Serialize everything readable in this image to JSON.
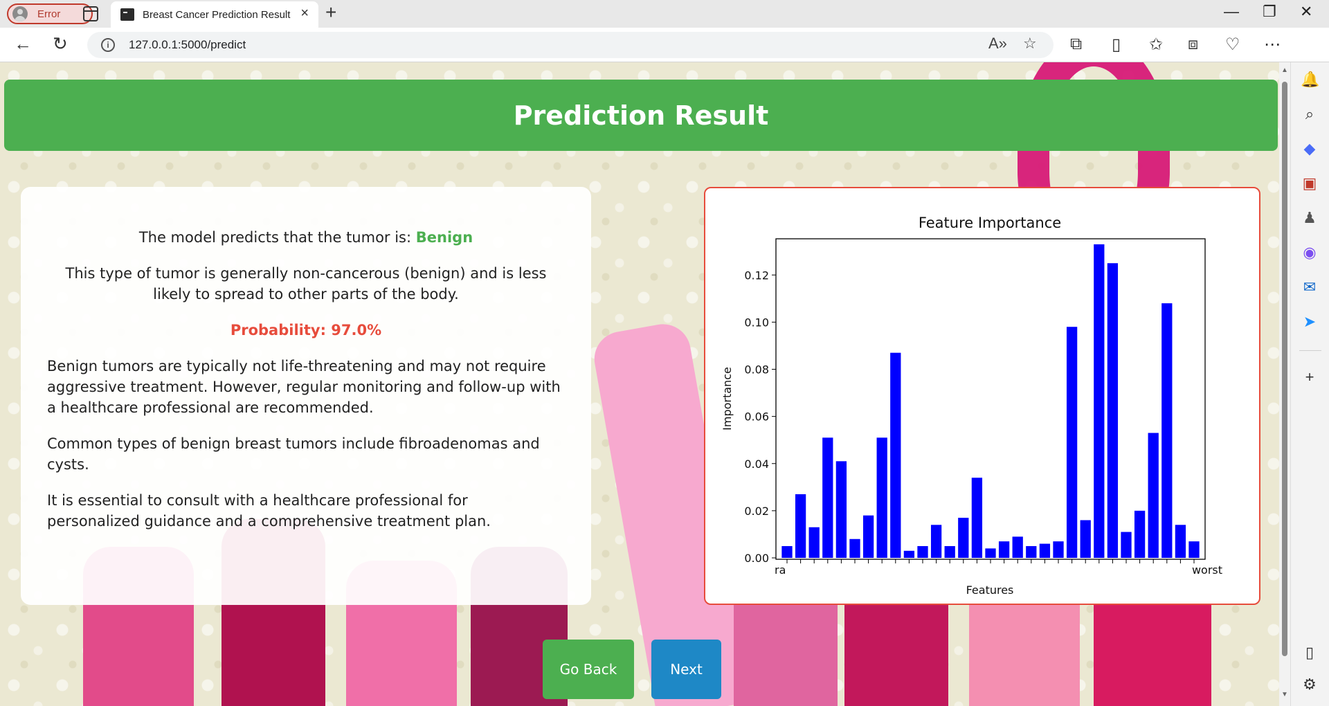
{
  "browser": {
    "profile_label": "Error",
    "tab_title": "Breast Cancer Prediction Result",
    "url": "127.0.0.1:5000/predict"
  },
  "header": {
    "title": "Prediction Result"
  },
  "result": {
    "predict_prefix": "The model predicts that the tumor is: ",
    "prediction": "Benign",
    "type_description": "This type of tumor is generally non-cancerous (benign) and is less likely to spread to other parts of the body.",
    "probability": "Probability: 97.0%",
    "paragraphs": [
      "Benign tumors are typically not life-threatening and may not require aggressive treatment. However, regular monitoring and follow-up with a healthcare professional are recommended.",
      "Common types of benign breast tumors include fibroadenomas and cysts.",
      "It is essential to consult with a healthcare professional for personalized guidance and a comprehensive treatment plan."
    ]
  },
  "buttons": {
    "back": "Go Back",
    "next": "Next"
  },
  "colors": {
    "header": "#4caf50",
    "prediction": "#4caf50",
    "probability": "#e74c3c",
    "bar": "#0000ff",
    "chart_border": "#e74c3c"
  },
  "chart_data": {
    "type": "bar",
    "title": "Feature Importance",
    "xlabel": "Features",
    "ylabel": "Importance",
    "ylim": [
      0,
      0.14
    ],
    "yticks": [
      "0.00",
      "0.02",
      "0.04",
      "0.06",
      "0.08",
      "0.10",
      "0.12"
    ],
    "first_tick_label": "ra",
    "last_tick_label": "worst",
    "values": [
      0.005,
      0.027,
      0.013,
      0.051,
      0.041,
      0.008,
      0.018,
      0.051,
      0.087,
      0.003,
      0.005,
      0.014,
      0.005,
      0.017,
      0.034,
      0.004,
      0.007,
      0.009,
      0.005,
      0.006,
      0.007,
      0.098,
      0.016,
      0.133,
      0.125,
      0.011,
      0.02,
      0.053,
      0.108,
      0.014,
      0.007
    ],
    "grid": false,
    "legend": "none"
  }
}
